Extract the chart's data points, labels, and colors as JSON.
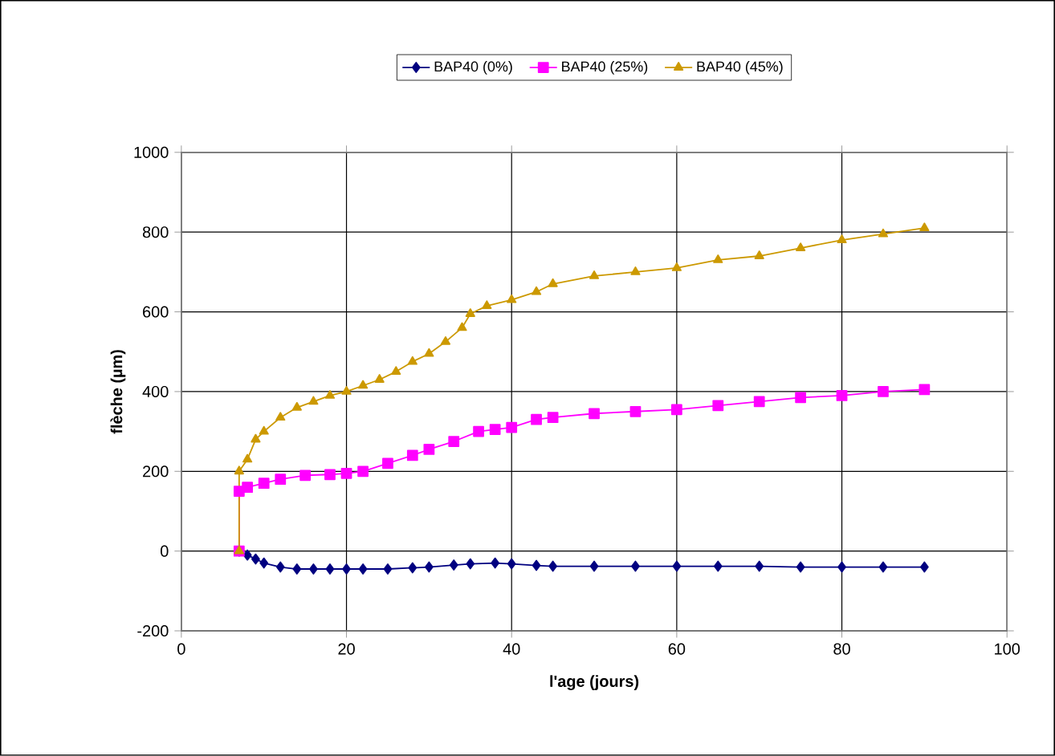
{
  "chart_data": {
    "type": "line",
    "xlabel": "l'age (jours)",
    "ylabel": "flèche (µm)",
    "xlim": [
      0,
      100
    ],
    "xticks": [
      0,
      20,
      40,
      60,
      80,
      100
    ],
    "ylim": [
      -200,
      1000
    ],
    "yticks": [
      -200,
      0,
      200,
      400,
      600,
      800,
      1000
    ],
    "grid": true,
    "legend": "top",
    "line_style": "solid",
    "series": [
      {
        "name": "BAP40 (0%)",
        "color": "#000080",
        "marker": "diamond",
        "x": [
          7,
          8,
          9,
          10,
          12,
          14,
          16,
          18,
          20,
          22,
          25,
          28,
          30,
          33,
          35,
          38,
          40,
          43,
          45,
          50,
          55,
          60,
          65,
          70,
          75,
          80,
          85,
          90
        ],
        "values": [
          0,
          -10,
          -20,
          -30,
          -40,
          -45,
          -45,
          -45,
          -45,
          -45,
          -45,
          -42,
          -40,
          -35,
          -32,
          -30,
          -32,
          -36,
          -38,
          -38,
          -38,
          -38,
          -38,
          -38,
          -40,
          -40,
          -40,
          -40
        ]
      },
      {
        "name": "BAP40 (25%)",
        "color": "#ff00ff",
        "marker": "square",
        "x": [
          7,
          7,
          8,
          10,
          12,
          15,
          18,
          20,
          22,
          25,
          28,
          30,
          33,
          36,
          38,
          40,
          43,
          45,
          50,
          55,
          60,
          65,
          70,
          75,
          80,
          85,
          90
        ],
        "values": [
          0,
          150,
          160,
          170,
          180,
          190,
          192,
          195,
          200,
          220,
          240,
          255,
          275,
          300,
          305,
          310,
          330,
          335,
          345,
          350,
          355,
          365,
          375,
          385,
          390,
          400,
          405
        ]
      },
      {
        "name": "BAP40 (45%)",
        "color": "#cc9900",
        "marker": "triangle",
        "x": [
          7,
          7,
          8,
          9,
          10,
          12,
          14,
          16,
          18,
          20,
          22,
          24,
          26,
          28,
          30,
          32,
          34,
          35,
          37,
          40,
          43,
          45,
          50,
          55,
          60,
          65,
          70,
          75,
          80,
          85,
          90
        ],
        "values": [
          0,
          200,
          230,
          280,
          300,
          335,
          360,
          375,
          390,
          400,
          415,
          430,
          450,
          475,
          495,
          525,
          560,
          595,
          615,
          630,
          650,
          670,
          690,
          700,
          710,
          730,
          740,
          760,
          780,
          795,
          810
        ]
      }
    ]
  }
}
